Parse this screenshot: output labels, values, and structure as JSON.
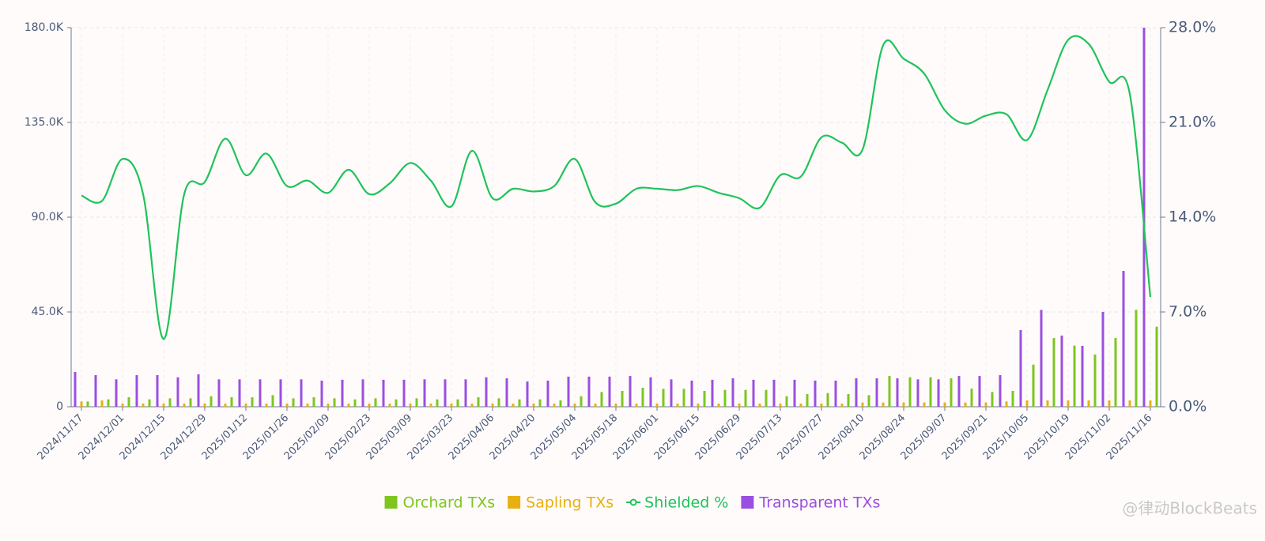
{
  "chart_data": {
    "type": "bar-line",
    "categories": [
      "2024/11/17",
      null,
      "2024/12/01",
      null,
      "2024/12/15",
      null,
      "2024/12/29",
      null,
      "2025/01/12",
      null,
      "2025/01/26",
      null,
      "2025/02/09",
      null,
      "2025/02/23",
      null,
      "2025/03/09",
      null,
      "2025/03/23",
      null,
      "2025/04/06",
      null,
      "2025/04/20",
      null,
      "2025/05/04",
      null,
      "2025/05/18",
      null,
      "2025/06/01",
      null,
      "2025/06/15",
      null,
      "2025/06/29",
      null,
      "2025/07/13",
      null,
      "2025/07/27",
      null,
      "2025/08/10",
      null,
      "2025/08/24",
      null,
      "2025/09/07",
      null,
      "2025/09/21",
      null,
      "2025/10/05",
      null,
      "2025/10/19",
      null,
      "2025/11/02",
      null,
      "2025/11/16"
    ],
    "series": [
      {
        "name": "Orchard TXs",
        "color": "#7ec61f",
        "type": "bar",
        "values": [
          2500,
          3500,
          4500,
          3500,
          4000,
          4000,
          5000,
          4500,
          4500,
          5500,
          4000,
          4500,
          4000,
          3500,
          4000,
          3500,
          4000,
          3500,
          3500,
          4500,
          4000,
          3500,
          3500,
          3000,
          5000,
          7000,
          7500,
          9000,
          8500,
          8500,
          7500,
          8000,
          8000,
          8000,
          5000,
          6000,
          6500,
          6000,
          5500,
          14600,
          14000,
          14000,
          13500,
          8600,
          7000,
          7500,
          20000,
          32600,
          29000,
          24800,
          32600,
          46000,
          38000
        ]
      },
      {
        "name": "Sapling TXs",
        "color": "#e8b011",
        "type": "bar",
        "values": [
          2500,
          3000,
          1500,
          1500,
          1500,
          1500,
          1500,
          1500,
          1500,
          1500,
          1500,
          1500,
          1500,
          1500,
          1500,
          1500,
          1500,
          1500,
          1500,
          1500,
          1500,
          1500,
          1500,
          1500,
          1500,
          1500,
          1500,
          1500,
          1500,
          1500,
          1500,
          1500,
          1500,
          1500,
          1500,
          1500,
          1500,
          1500,
          2000,
          2000,
          2000,
          2000,
          2000,
          2000,
          2000,
          2500,
          3000,
          3000,
          3000,
          3000,
          3000,
          3000,
          3000
        ]
      },
      {
        "name": "Shielded %",
        "color": "#1fc35a",
        "type": "line",
        "axis": "y2",
        "values": [
          15.6,
          15.2,
          18.3,
          15.7,
          5.0,
          15.7,
          16.6,
          19.8,
          17.1,
          18.7,
          16.3,
          16.7,
          15.8,
          17.5,
          15.7,
          16.5,
          18.0,
          16.7,
          14.8,
          18.9,
          15.4,
          16.1,
          15.9,
          16.3,
          18.3,
          15.1,
          15.0,
          16.1,
          16.1,
          16.0,
          16.3,
          15.8,
          15.4,
          14.7,
          17.1,
          17.0,
          19.9,
          19.5,
          19.0,
          26.7,
          25.7,
          24.6,
          21.9,
          20.9,
          21.5,
          21.6,
          19.7,
          23.4,
          27.1,
          26.8,
          24.0,
          23.1,
          8.1
        ]
      },
      {
        "name": "Transparent TXs",
        "color": "#9b4fe0",
        "type": "bar",
        "values": [
          16500,
          15000,
          13000,
          15000,
          15000,
          14000,
          15400,
          13000,
          13000,
          13000,
          13000,
          13000,
          12400,
          12800,
          13000,
          12800,
          12800,
          13000,
          13000,
          13000,
          14000,
          13500,
          12000,
          12400,
          14300,
          14300,
          14300,
          14600,
          14000,
          13000,
          12400,
          12800,
          13500,
          12800,
          12800,
          12800,
          12400,
          12400,
          13500,
          13500,
          13500,
          13000,
          13000,
          14600,
          14600,
          15000,
          36400,
          46000,
          33800,
          28900,
          45000,
          64500,
          180000
        ]
      }
    ],
    "ylim": [
      0,
      180000
    ],
    "yticks": [
      0,
      {
        "value": 45000,
        "label": "45.0K"
      },
      {
        "value": 90000,
        "label": "90.0K"
      },
      {
        "value": 135000,
        "label": "135.0K"
      },
      {
        "value": 180000,
        "label": "180.0K"
      }
    ],
    "y2lim": [
      0,
      28
    ],
    "y2ticks": [
      {
        "value": 0,
        "label": "0.0%"
      },
      {
        "value": 7,
        "label": "7.0%"
      },
      {
        "value": 14,
        "label": "14.0%"
      },
      {
        "value": 21,
        "label": "21.0%"
      },
      {
        "value": 28,
        "label": "28.0%"
      }
    ],
    "grid": true,
    "legend": "bottom"
  },
  "watermark": "@律动BlockBeats"
}
